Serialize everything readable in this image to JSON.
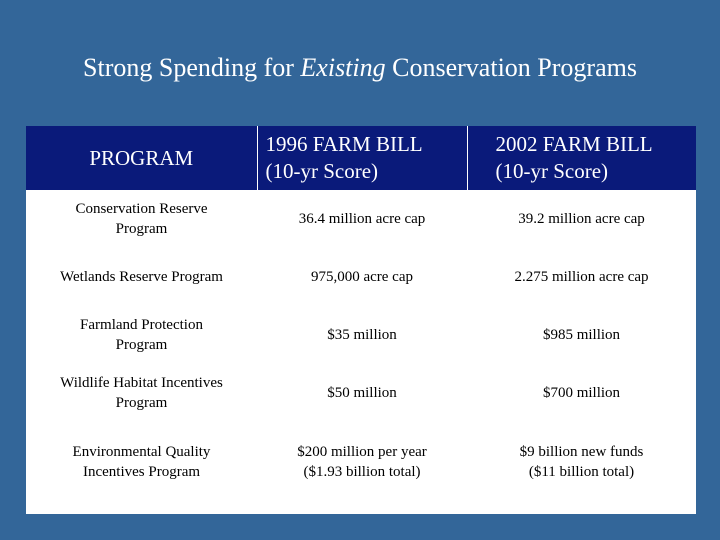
{
  "title": {
    "prefix": "Strong Spending for ",
    "emphasis": "Existing",
    "suffix": " Conservation Programs"
  },
  "table": {
    "headers": {
      "program": "PROGRAM",
      "bill_1996_line1": "1996 FARM BILL",
      "bill_1996_line2": "(10-yr Score)",
      "bill_2002_line1": "2002 FARM BILL",
      "bill_2002_line2": "(10-yr Score)"
    },
    "rows": [
      {
        "program_line1": "Conservation Reserve",
        "program_line2": "Program",
        "bill_1996_line1": "36.4 million acre cap",
        "bill_1996_line2": "",
        "bill_2002_line1": "39.2 million acre cap",
        "bill_2002_line2": ""
      },
      {
        "program_line1": "Wetlands Reserve Program",
        "program_line2": "",
        "bill_1996_line1": "975,000 acre cap",
        "bill_1996_line2": "",
        "bill_2002_line1": "2.275 million acre cap",
        "bill_2002_line2": ""
      },
      {
        "program_line1": "Farmland Protection",
        "program_line2": "Program",
        "bill_1996_line1": "$35 million",
        "bill_1996_line2": "",
        "bill_2002_line1": "$985 million",
        "bill_2002_line2": ""
      },
      {
        "program_line1": "Wildlife Habitat Incentives",
        "program_line2": "Program",
        "bill_1996_line1": "$50 million",
        "bill_1996_line2": "",
        "bill_2002_line1": "$700 million",
        "bill_2002_line2": ""
      },
      {
        "program_line1": "Environmental Quality",
        "program_line2": "Incentives Program",
        "bill_1996_line1": "$200 million per year",
        "bill_1996_line2": "($1.93 billion total)",
        "bill_2002_line1": "$9 billion new funds",
        "bill_2002_line2": "($11 billion total)"
      }
    ]
  }
}
